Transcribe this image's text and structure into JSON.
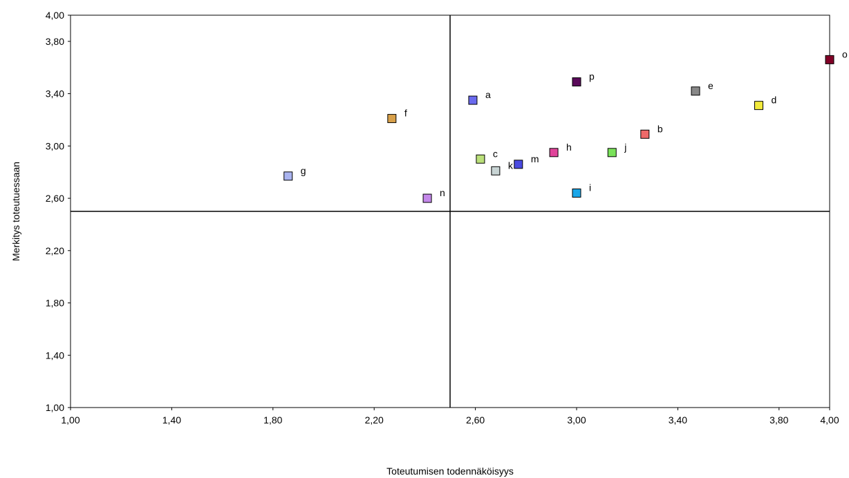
{
  "chart_data": {
    "type": "scatter",
    "title": "",
    "xlabel": "Toteutumisen todennäköisyys",
    "ylabel": "Merkitys toteutuessaan",
    "xlim": [
      1.0,
      4.0
    ],
    "ylim": [
      1.0,
      4.0
    ],
    "x_ticks": [
      "1,00",
      "1,40",
      "1,80",
      "2,20",
      "2,60",
      "3,00",
      "3,40",
      "3,80",
      "4,00"
    ],
    "x_tick_values": [
      1.0,
      1.4,
      1.8,
      2.2,
      2.6,
      3.0,
      3.4,
      3.8,
      4.0
    ],
    "y_ticks": [
      "1,00",
      "1,40",
      "1,80",
      "2,20",
      "2,60",
      "3,00",
      "3,40",
      "3,80",
      "4,00"
    ],
    "y_tick_values": [
      1.0,
      1.4,
      1.8,
      2.2,
      2.6,
      3.0,
      3.4,
      3.8,
      4.0
    ],
    "reference_lines": {
      "x": 2.5,
      "y": 2.5
    },
    "grid": false,
    "legend": "none",
    "points": [
      {
        "label": "a",
        "x": 2.59,
        "y": 3.35,
        "color": "#6a6aee"
      },
      {
        "label": "b",
        "x": 3.27,
        "y": 3.09,
        "color": "#ee6a6a"
      },
      {
        "label": "c",
        "x": 2.62,
        "y": 2.9,
        "color": "#bbe07a"
      },
      {
        "label": "d",
        "x": 3.72,
        "y": 3.31,
        "color": "#f2ea3c"
      },
      {
        "label": "e",
        "x": 3.47,
        "y": 3.42,
        "color": "#888888"
      },
      {
        "label": "f",
        "x": 2.27,
        "y": 3.21,
        "color": "#d8a04a"
      },
      {
        "label": "g",
        "x": 1.86,
        "y": 2.77,
        "color": "#aab4f0"
      },
      {
        "label": "h",
        "x": 2.91,
        "y": 2.95,
        "color": "#e0449a"
      },
      {
        "label": "i",
        "x": 3.0,
        "y": 2.64,
        "color": "#1aa6e8"
      },
      {
        "label": "j",
        "x": 3.14,
        "y": 2.95,
        "color": "#7ae25a"
      },
      {
        "label": "k",
        "x": 2.68,
        "y": 2.81,
        "color": "#c8d4d4"
      },
      {
        "label": "m",
        "x": 2.77,
        "y": 2.86,
        "color": "#4a4ae0"
      },
      {
        "label": "n",
        "x": 2.41,
        "y": 2.6,
        "color": "#c488ea"
      },
      {
        "label": "o",
        "x": 4.0,
        "y": 3.66,
        "color": "#800026"
      },
      {
        "label": "p",
        "x": 3.0,
        "y": 3.49,
        "color": "#5a0a5a"
      }
    ]
  }
}
